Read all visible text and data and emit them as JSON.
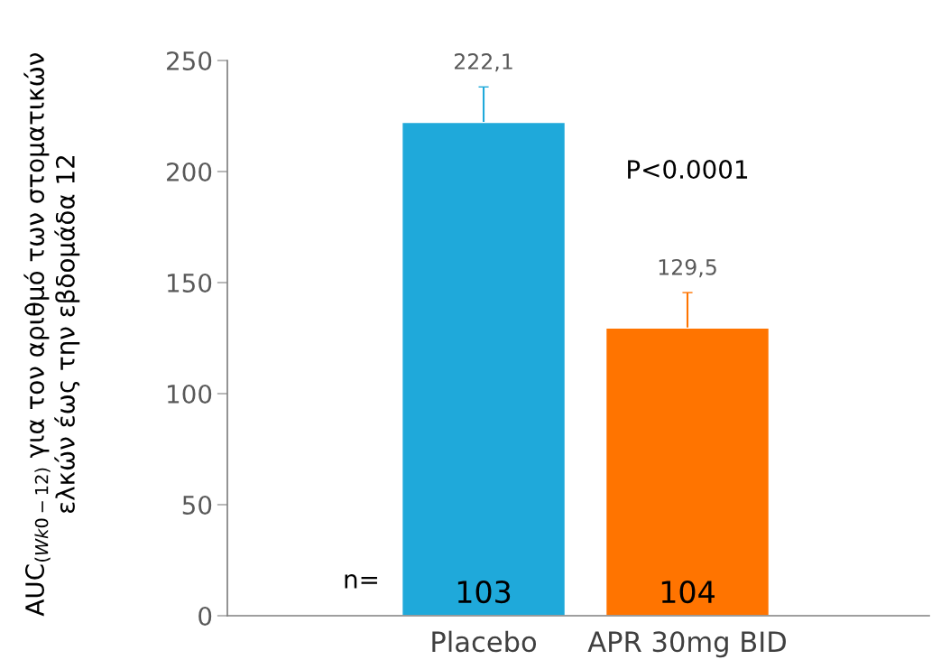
{
  "chart_data": {
    "type": "bar",
    "categories": [
      "Placebo",
      "APR 30mg BID"
    ],
    "values": [
      222.1,
      129.5
    ],
    "colors": [
      "#1fa9da",
      "#ff7400"
    ],
    "errors": [
      16,
      16
    ],
    "value_labels": [
      "222,1",
      "129,5"
    ],
    "ylabel": "AUC$_{(Wk0−12)}$ για τον αριθμό των στοματικών ελκών έως την εβδομάδα 12",
    "ylim": [
      0,
      250
    ],
    "yticks": [
      0,
      50,
      100,
      150,
      200,
      250
    ],
    "annotations": [
      "P<0.0001",
      "n=",
      "103",
      "104"
    ],
    "grid": false
  }
}
